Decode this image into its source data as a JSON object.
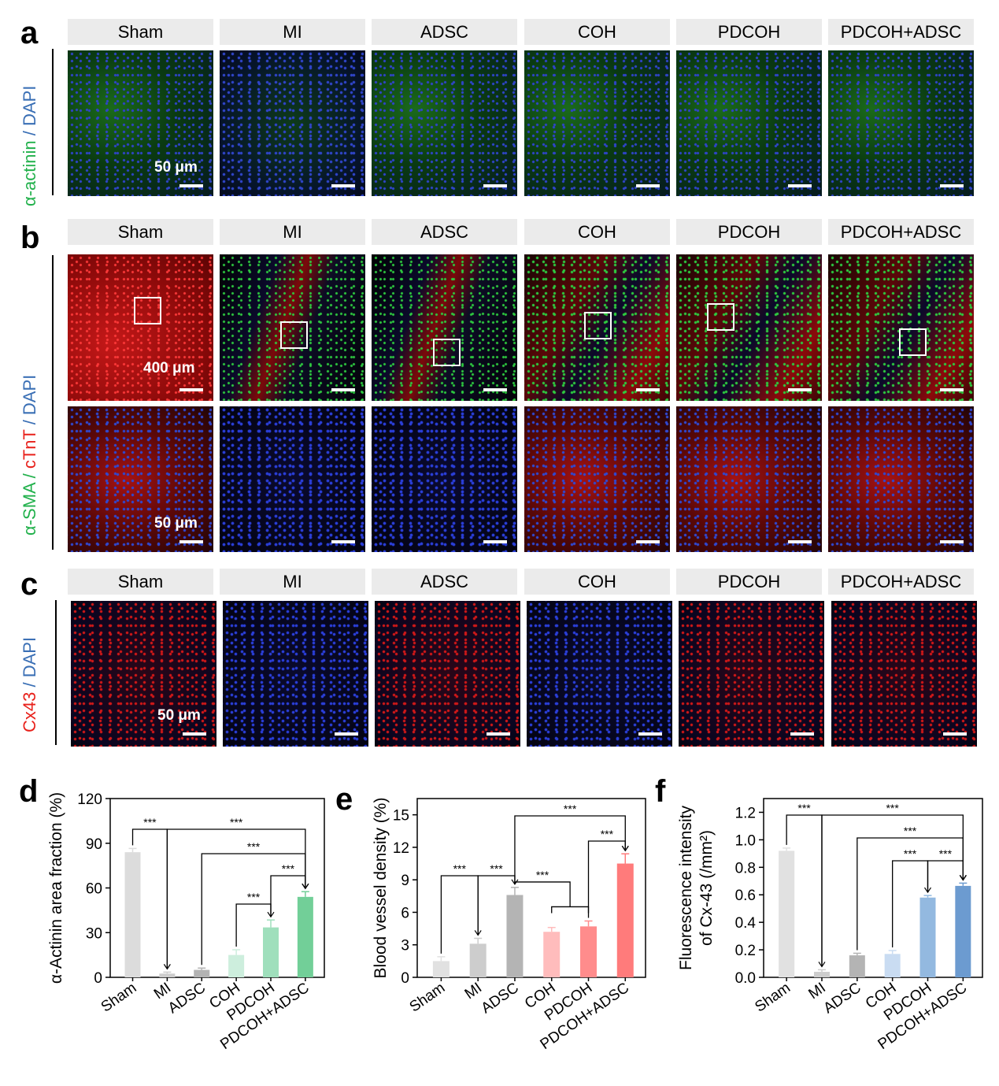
{
  "groups": [
    "Sham",
    "MI",
    "ADSC",
    "COH",
    "PDCOH",
    "PDCOH+ADSC"
  ],
  "panels": {
    "a": {
      "letter": "a",
      "stain_label": [
        {
          "text": "α-actinin",
          "color": "#22b14c"
        },
        {
          "text": " / ",
          "color": "#3a6fb5"
        },
        {
          "text": "DAPI",
          "color": "#3a6fb5"
        }
      ],
      "scale_label": "50 μm"
    },
    "b": {
      "letter": "b",
      "stain_label": [
        {
          "text": "α-SMA",
          "color": "#22b14c"
        },
        {
          "text": " / ",
          "color": "#22b14c"
        },
        {
          "text": "cTnT",
          "color": "#e8211b"
        },
        {
          "text": " / ",
          "color": "#3a6fb5"
        },
        {
          "text": "DAPI",
          "color": "#3a6fb5"
        }
      ],
      "scale_label_top": "400 μm",
      "scale_label_bottom": "50 μm"
    },
    "c": {
      "letter": "c",
      "stain_label": [
        {
          "text": "Cx43",
          "color": "#e8211b"
        },
        {
          "text": " / ",
          "color": "#3a6fb5"
        },
        {
          "text": "DAPI",
          "color": "#3a6fb5"
        }
      ],
      "scale_label": "50 μm"
    }
  },
  "chart_data": [
    {
      "panel": "d",
      "type": "bar",
      "categories": [
        "Sham",
        "MI",
        "ADSC",
        "COH",
        "PDCOH",
        "PDCOH+ADSC"
      ],
      "values": [
        84,
        2.5,
        5,
        15,
        33.5,
        54
      ],
      "errors": [
        2.5,
        1,
        1.2,
        3.5,
        5,
        3.5
      ],
      "colors": [
        "#dcdcdc",
        "#cdcdcd",
        "#b3b3b3",
        "#cdeedd",
        "#9fdfbc",
        "#72cf98"
      ],
      "ylabel": "α-Actinin area fraction (%)",
      "ylim": [
        0,
        120
      ],
      "yticks": [
        "0",
        "30",
        "60",
        "90",
        "120"
      ],
      "sig": [
        {
          "from": 0,
          "to": 1,
          "label": "***"
        },
        {
          "from": 1,
          "to": 5,
          "label": "***"
        },
        {
          "from": 2,
          "to": 5,
          "label": "***"
        },
        {
          "from": 4,
          "to": 5,
          "label": "***"
        },
        {
          "from": 3,
          "to": 4,
          "label": "***"
        }
      ]
    },
    {
      "panel": "e",
      "type": "bar",
      "categories": [
        "Sham",
        "MI",
        "ADSC",
        "COH",
        "PDCOH",
        "PDCOH+ADSC"
      ],
      "values": [
        1.5,
        3.1,
        7.6,
        4.2,
        4.7,
        10.5
      ],
      "errors": [
        0.4,
        0.5,
        0.7,
        0.4,
        0.5,
        0.9
      ],
      "colors": [
        "#e1e1e1",
        "#cdcdcd",
        "#b4b4b4",
        "#ffbcbc",
        "#ff8c8c",
        "#ff7b7b"
      ],
      "ylabel": "Blood vessel density (%)",
      "ylim": [
        0,
        16.5
      ],
      "yticks": [
        "0",
        "3",
        "6",
        "9",
        "12",
        "15"
      ],
      "sig": [
        {
          "from": 0,
          "to": 1,
          "label": "***"
        },
        {
          "from": 1,
          "to": 2,
          "label": "***"
        },
        {
          "from": 2,
          "to": 5,
          "label": "***"
        },
        {
          "from": 4,
          "to": 5,
          "label": "***"
        },
        {
          "from": 2,
          "to": [
            3,
            4
          ],
          "label": "***"
        }
      ]
    },
    {
      "panel": "f",
      "type": "bar",
      "categories": [
        "Sham",
        "MI",
        "ADSC",
        "COH",
        "PDCOH",
        "PDCOH+ADSC"
      ],
      "values": [
        0.92,
        0.04,
        0.16,
        0.17,
        0.58,
        0.665
      ],
      "errors": [
        0.02,
        0.015,
        0.015,
        0.025,
        0.015,
        0.02
      ],
      "colors": [
        "#e1e1e1",
        "#cdcdcd",
        "#b4b4b4",
        "#c9dcf2",
        "#93b9e0",
        "#6c9bd0"
      ],
      "ylabel": "Fluorescence intensity of Cx-43 (/mm²)",
      "ylabel_lines": [
        "Fluorescence intensity",
        "of Cx-43  (/mm²)"
      ],
      "ylim": [
        0,
        1.3
      ],
      "yticks": [
        "0.0",
        "0.2",
        "0.4",
        "0.6",
        "0.8",
        "1.0",
        "1.2"
      ],
      "sig": [
        {
          "from": 0,
          "to": 1,
          "label": "***"
        },
        {
          "from": 1,
          "to": 5,
          "label": "***"
        },
        {
          "from": 2,
          "to": 5,
          "label": "***"
        },
        {
          "from": 3,
          "to": 4,
          "label": "***"
        },
        {
          "from": 4,
          "to": 5,
          "label": "***"
        }
      ]
    }
  ]
}
